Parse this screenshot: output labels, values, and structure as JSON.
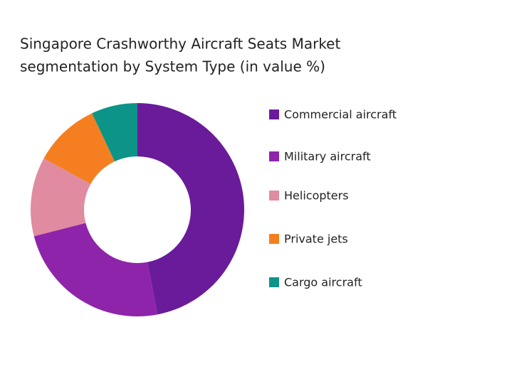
{
  "chart_data": {
    "type": "donut",
    "title": "Singapore Crashworthy Aircraft Seats Market",
    "subtitle": "segmentation by System Type (in value %)",
    "categories": [
      "Commercial aircraft",
      "Military aircraft",
      "Helicopters",
      "Private jets",
      "Cargo aircraft"
    ],
    "values": [
      47,
      24,
      12,
      10,
      7
    ],
    "colors": [
      "#6a1b9a",
      "#8e24aa",
      "#e08ba0",
      "#f57f20",
      "#0d9488"
    ],
    "legend": "right"
  }
}
